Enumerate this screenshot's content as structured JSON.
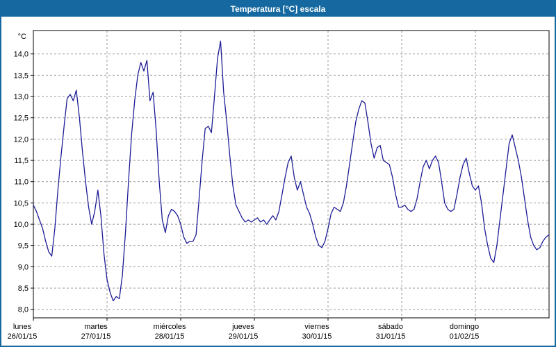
{
  "window": {
    "title": "Temperatura [°C] escala",
    "titlebar_color": "#1569a0",
    "border_color": "#1569a0"
  },
  "chart_data": {
    "type": "line",
    "title": "Temperatura [°C] escala",
    "ylabel": "°C",
    "xlabel": "",
    "ylim": [
      7.8,
      14.55
    ],
    "yticks": [
      8.0,
      8.5,
      9.0,
      9.5,
      10.0,
      10.5,
      11.0,
      11.5,
      12.0,
      12.5,
      13.0,
      13.5,
      14.0
    ],
    "ytick_decimal_separator": ",",
    "grid": "dashed",
    "grid_color": "#9b9b9b",
    "frame_color": "#000000",
    "line_color": "#1c1c96",
    "legend": "none",
    "days": [
      {
        "name": "lunes",
        "date": "26/01/15"
      },
      {
        "name": "martes",
        "date": "27/01/15"
      },
      {
        "name": "miércoles",
        "date": "28/01/15"
      },
      {
        "name": "jueves",
        "date": "29/01/15"
      },
      {
        "name": "viernes",
        "date": "30/01/15"
      },
      {
        "name": "sábado",
        "date": "31/01/15"
      },
      {
        "name": "domingo",
        "date": "01/02/15"
      }
    ],
    "x_resolution_hours": 1,
    "x_span_days": 7,
    "values_hourly": [
      10.45,
      10.3,
      10.1,
      9.9,
      9.6,
      9.35,
      9.25,
      9.9,
      10.8,
      11.6,
      12.3,
      12.95,
      13.05,
      12.9,
      13.15,
      12.5,
      11.7,
      11.0,
      10.4,
      10.0,
      10.3,
      10.8,
      10.2,
      9.3,
      8.7,
      8.4,
      8.2,
      8.3,
      8.25,
      8.8,
      9.8,
      11.0,
      12.1,
      12.9,
      13.5,
      13.8,
      13.6,
      13.85,
      12.9,
      13.1,
      12.2,
      11.0,
      10.1,
      9.8,
      10.2,
      10.35,
      10.3,
      10.2,
      10.0,
      9.7,
      9.55,
      9.6,
      9.6,
      9.75,
      10.6,
      11.5,
      12.25,
      12.3,
      12.15,
      13.0,
      13.9,
      14.3,
      13.1,
      12.4,
      11.6,
      10.9,
      10.45,
      10.3,
      10.15,
      10.05,
      10.1,
      10.05,
      10.1,
      10.15,
      10.05,
      10.1,
      10.0,
      10.1,
      10.2,
      10.1,
      10.3,
      10.7,
      11.1,
      11.45,
      11.6,
      11.1,
      10.8,
      11.0,
      10.7,
      10.4,
      10.25,
      10.0,
      9.7,
      9.5,
      9.45,
      9.6,
      9.9,
      10.25,
      10.4,
      10.35,
      10.3,
      10.5,
      10.9,
      11.4,
      11.9,
      12.4,
      12.7,
      12.9,
      12.85,
      12.4,
      11.9,
      11.55,
      11.8,
      11.85,
      11.5,
      11.45,
      11.4,
      11.1,
      10.7,
      10.4,
      10.4,
      10.45,
      10.35,
      10.3,
      10.35,
      10.6,
      11.0,
      11.35,
      11.5,
      11.3,
      11.5,
      11.6,
      11.45,
      11.0,
      10.5,
      10.35,
      10.3,
      10.35,
      10.7,
      11.1,
      11.4,
      11.55,
      11.2,
      10.9,
      10.8,
      10.9,
      10.5,
      9.9,
      9.5,
      9.2,
      9.1,
      9.5,
      10.1,
      10.7,
      11.3,
      11.9,
      12.1,
      11.8,
      11.5,
      11.1,
      10.6,
      10.1,
      9.7,
      9.5,
      9.4,
      9.45,
      9.6,
      9.7,
      9.75
    ]
  }
}
